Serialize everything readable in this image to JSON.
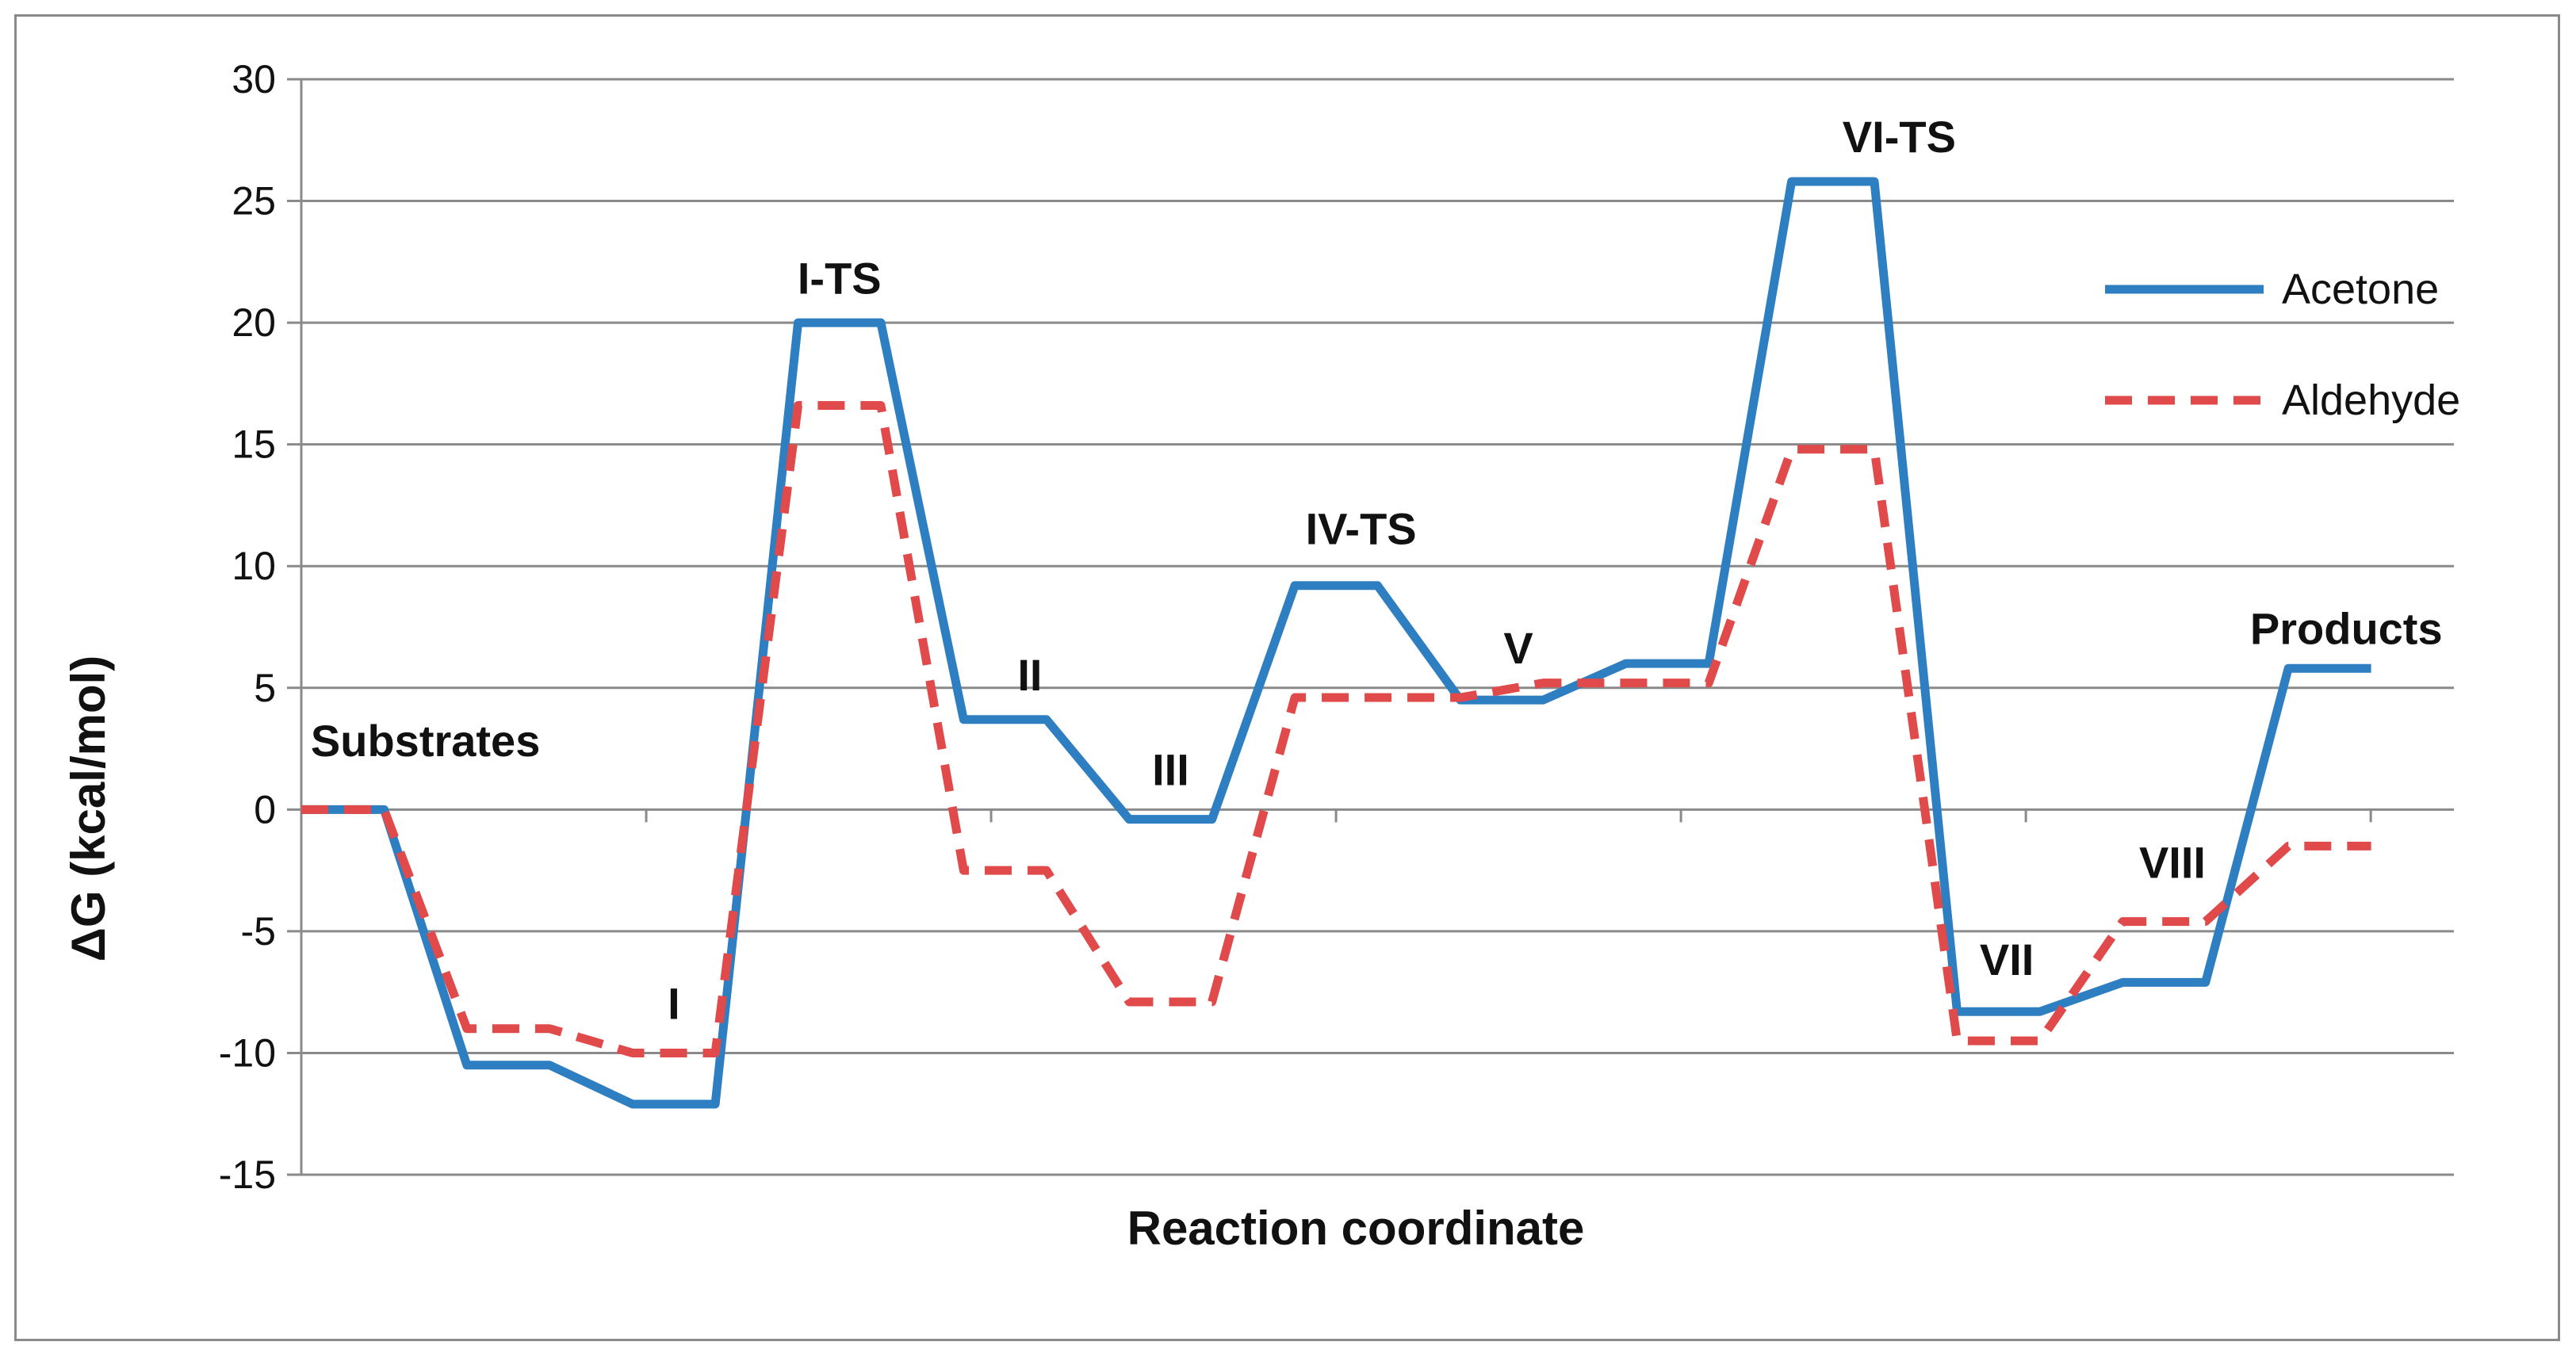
{
  "chart_data": {
    "type": "line",
    "title": "",
    "xlabel": "Reaction coordinate",
    "ylabel": "ΔG (kcal/mol)",
    "ylim": [
      -15,
      30
    ],
    "yticks": [
      "30",
      "25",
      "20",
      "15",
      "10",
      "5",
      "0",
      "-5",
      "-10",
      "-15"
    ],
    "grid": true,
    "legend_position": "right",
    "x": [
      0,
      0.5,
      1,
      1.5,
      2,
      2.5,
      3,
      3.5,
      4,
      4.5,
      5,
      5.5,
      6,
      6.5,
      7,
      7.5,
      8,
      8.5,
      9,
      9.5,
      10,
      10.5,
      11,
      11.5,
      12,
      12.5
    ],
    "series": [
      {
        "name": "Acetone",
        "color": "#2e7fc1",
        "dash": "solid",
        "values": [
          0,
          0,
          -10.5,
          -10.5,
          -12.1,
          -12.1,
          20.0,
          20.0,
          3.7,
          3.7,
          -0.4,
          -0.4,
          9.2,
          9.2,
          4.5,
          4.5,
          6.0,
          6.0,
          25.8,
          25.8,
          -8.3,
          -8.3,
          -7.1,
          -7.1,
          5.8,
          5.8
        ]
      },
      {
        "name": "Aldehyde",
        "color": "#e04a4a",
        "dash": "dashed",
        "values": [
          0,
          0,
          -9.0,
          -9.0,
          -10.0,
          -10.0,
          16.6,
          16.6,
          -2.5,
          -2.5,
          -7.9,
          -7.9,
          4.6,
          4.6,
          4.6,
          5.2,
          5.2,
          5.2,
          14.8,
          14.8,
          -9.5,
          -9.5,
          -4.6,
          -4.6,
          -1.5,
          -1.5
        ]
      }
    ],
    "point_labels": [
      {
        "text": "Substrates",
        "x": 0.75,
        "y": 2.2
      },
      {
        "text": "I",
        "x": 2.25,
        "y": -8.6
      },
      {
        "text": "I-TS",
        "x": 3.25,
        "y": 21.2
      },
      {
        "text": "II",
        "x": 4.4,
        "y": 4.9
      },
      {
        "text": "III",
        "x": 5.25,
        "y": 1.0
      },
      {
        "text": "IV-TS",
        "x": 6.4,
        "y": 10.9
      },
      {
        "text": "V",
        "x": 7.35,
        "y": 6.0
      },
      {
        "text": "VI-TS",
        "x": 9.65,
        "y": 27.0
      },
      {
        "text": "VII",
        "x": 10.3,
        "y": -6.8
      },
      {
        "text": "VIII",
        "x": 11.3,
        "y": -2.8
      },
      {
        "text": "Products",
        "x": 12.35,
        "y": 6.8
      }
    ]
  }
}
